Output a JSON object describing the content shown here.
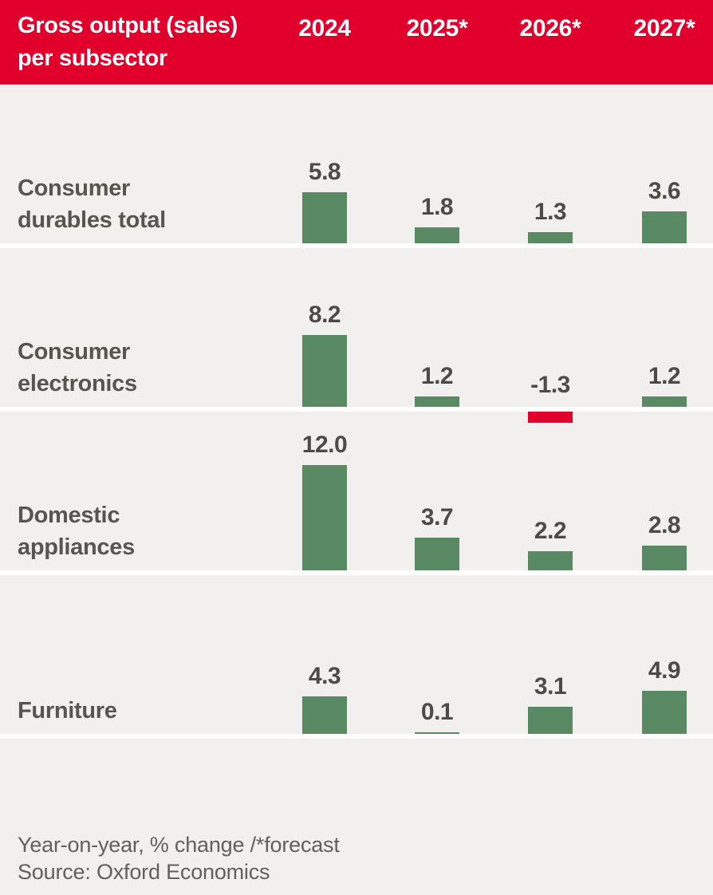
{
  "page": {
    "background": "#f1f0ee"
  },
  "header": {
    "background": "#e1002c",
    "text_color": "#ffffff"
  },
  "chart_data": {
    "type": "bar",
    "title": "Gross output (sales) per subsector",
    "title_lines": [
      "Gross output (sales)",
      "per subsector"
    ],
    "columns": [
      "2024",
      "2025*",
      "2026*",
      "2027*"
    ],
    "rows": [
      {
        "label_lines": [
          "Consumer",
          "durables total"
        ],
        "values": [
          5.8,
          1.8,
          1.3,
          3.6
        ]
      },
      {
        "label_lines": [
          "Consumer",
          "electronics"
        ],
        "values": [
          8.2,
          1.2,
          -1.3,
          1.2
        ]
      },
      {
        "label_lines": [
          "Domestic",
          "appliances"
        ],
        "values": [
          12.0,
          3.7,
          2.2,
          2.8
        ]
      },
      {
        "label_lines": [
          "Furniture"
        ],
        "values": [
          4.3,
          0.1,
          3.1,
          4.9
        ]
      }
    ],
    "value_label_format": "one_decimal",
    "baseline": 0,
    "grid": false,
    "legend": null,
    "note": "Year-on-year, % change /*forecast",
    "source": "Source: Oxford Economics",
    "colors": {
      "positive_bar": "#5a8a63",
      "negative_bar": "#e1002c",
      "value_label": "#4d4b48",
      "row_label": "#575550"
    }
  }
}
